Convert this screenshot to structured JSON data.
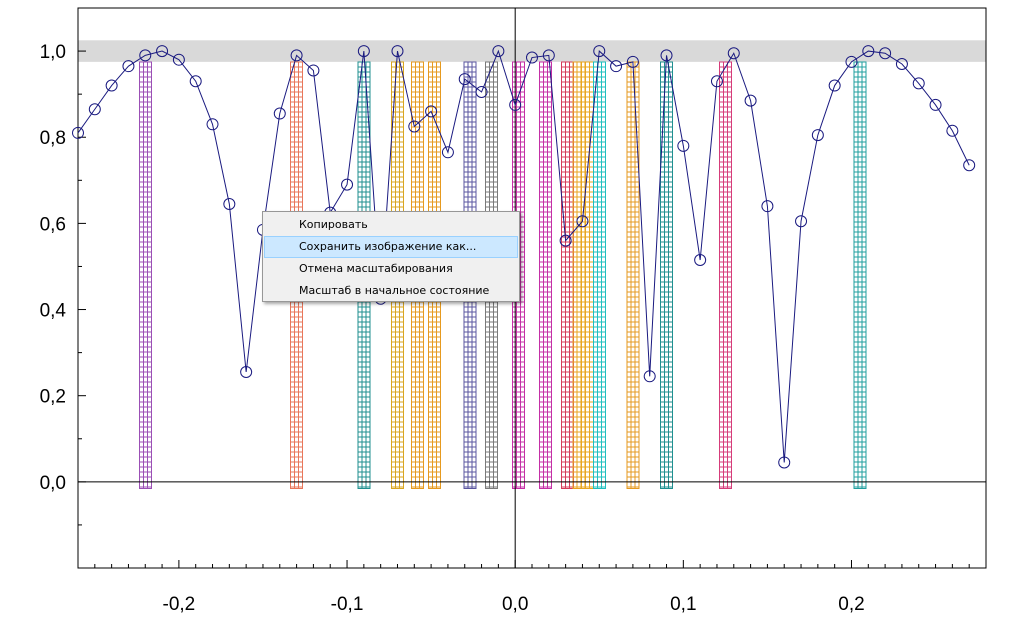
{
  "chart_data": {
    "type": "line",
    "title": "",
    "xlabel": "",
    "ylabel": "",
    "xlim": [
      -0.26,
      0.28
    ],
    "ylim": [
      -0.2,
      1.1
    ],
    "x_ticks": [
      -0.2,
      -0.1,
      0.0,
      0.1,
      0.2
    ],
    "x_tick_labels": [
      "-0,2",
      "-0,1",
      "0,0",
      "0,1",
      "0,2"
    ],
    "y_ticks": [
      0.0,
      0.2,
      0.4,
      0.6,
      0.8,
      1.0
    ],
    "y_tick_labels": [
      "0,0",
      "0,2",
      "0,4",
      "0,6",
      "0,8",
      "1,0"
    ],
    "band": {
      "y": [
        0.975,
        1.025
      ],
      "color": "#d9d9d9"
    },
    "series": [
      {
        "color": "#1a1a80",
        "marker": "circle",
        "x": [
          -0.26,
          -0.25,
          -0.24,
          -0.23,
          -0.22,
          -0.21,
          -0.2,
          -0.19,
          -0.18,
          -0.17,
          -0.16,
          -0.15,
          -0.14,
          -0.13,
          -0.12,
          -0.11,
          -0.1,
          -0.09,
          -0.08,
          -0.07,
          -0.06,
          -0.05,
          -0.04,
          -0.03,
          -0.02,
          -0.01,
          0.0,
          0.01,
          0.02,
          0.03,
          0.04,
          0.05,
          0.06,
          0.07,
          0.08,
          0.09,
          0.1,
          0.11,
          0.12,
          0.13,
          0.14,
          0.15,
          0.16,
          0.17,
          0.18,
          0.19,
          0.2,
          0.21,
          0.22,
          0.23,
          0.24,
          0.25,
          0.26,
          0.27
        ],
        "y": [
          0.81,
          0.865,
          0.92,
          0.965,
          0.99,
          1.0,
          0.98,
          0.93,
          0.83,
          0.645,
          0.255,
          0.585,
          0.855,
          0.99,
          0.955,
          0.625,
          0.69,
          1.0,
          0.425,
          1.0,
          0.825,
          0.86,
          0.765,
          0.935,
          0.905,
          1.0,
          0.875,
          0.985,
          0.99,
          0.56,
          0.605,
          1.0,
          0.965,
          0.975,
          0.245,
          0.99,
          0.78,
          0.515,
          0.93,
          0.995,
          0.885,
          0.64,
          0.045,
          0.605,
          0.805,
          0.92,
          0.975,
          1.0,
          0.995,
          0.97,
          0.925,
          0.875,
          0.815,
          0.735
        ]
      }
    ],
    "markers": [
      {
        "x": -0.22,
        "color": "#9b4fb5"
      },
      {
        "x": -0.13,
        "color": "#e8765a"
      },
      {
        "x": -0.09,
        "color": "#1f8f8f"
      },
      {
        "x": -0.07,
        "color": "#d9a521"
      },
      {
        "x": -0.058,
        "color": "#e69a1f"
      },
      {
        "x": -0.048,
        "color": "#e69a1f"
      },
      {
        "x": -0.027,
        "color": "#5a55a0"
      },
      {
        "x": -0.014,
        "color": "#7a7a7a"
      },
      {
        "x": 0.002,
        "color": "#c42fa6"
      },
      {
        "x": 0.018,
        "color": "#c42fa6"
      },
      {
        "x": 0.031,
        "color": "#d63c5a"
      },
      {
        "x": 0.038,
        "color": "#e8a51f"
      },
      {
        "x": 0.043,
        "color": "#e8a51f"
      },
      {
        "x": 0.05,
        "color": "#1fbfbf"
      },
      {
        "x": 0.07,
        "color": "#e69a1f"
      },
      {
        "x": 0.09,
        "color": "#1f8f8f"
      },
      {
        "x": 0.125,
        "color": "#d63c7a"
      },
      {
        "x": 0.205,
        "color": "#1f9f9f"
      }
    ],
    "marker_y_range": [
      -0.015,
      0.975
    ]
  },
  "context_menu": {
    "items": [
      {
        "label": "Копировать",
        "highlighted": false
      },
      {
        "label": "Сохранить изображение как...",
        "highlighted": true
      },
      {
        "label": "Отмена масштабирования",
        "highlighted": false
      },
      {
        "label": "Масштаб в начальное состояние",
        "highlighted": false
      }
    ]
  }
}
